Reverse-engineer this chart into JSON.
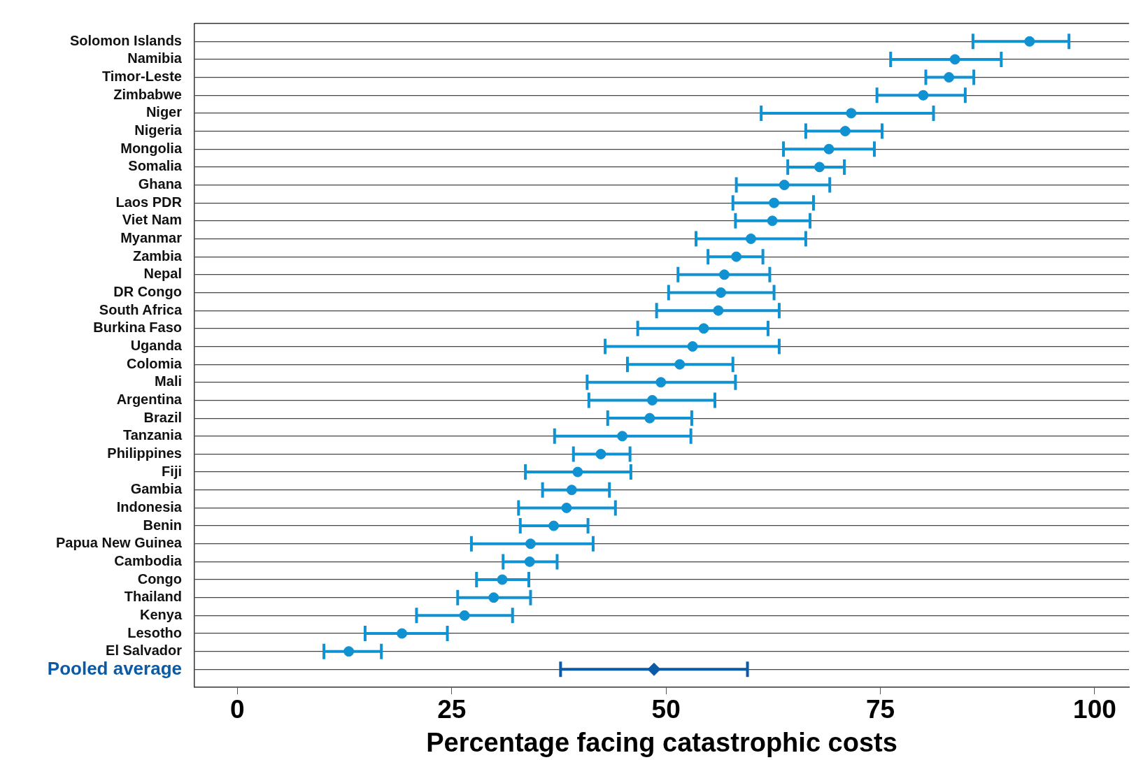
{
  "chart_data": {
    "type": "scatter",
    "orientation": "horizontal",
    "xlabel": "Percentage facing catastrophic costs",
    "categories": [
      "Solomon Islands",
      "Namibia",
      "Timor-Leste",
      "Zimbabwe",
      "Niger",
      "Nigeria",
      "Mongolia",
      "Somalia",
      "Ghana",
      "Laos PDR",
      "Viet Nam",
      "Myanmar",
      "Zambia",
      "Nepal",
      "DR Congo",
      "South Africa",
      "Burkina Faso",
      "Uganda",
      "Colomia",
      "Mali",
      "Argentina",
      "Brazil",
      "Tanzania",
      "Philippines",
      "Fiji",
      "Gambia",
      "Indonesia",
      "Benin",
      "Papua New Guinea",
      "Cambodia",
      "Congo",
      "Thailand",
      "Kenya",
      "Lesotho",
      "El Salvador",
      "Pooled average"
    ],
    "series": [
      {
        "color": "#0f91d2",
        "marker": "circle",
        "values": [
          92.4,
          83.7,
          83.0,
          80.0,
          71.6,
          70.9,
          69.0,
          67.9,
          63.8,
          62.6,
          62.4,
          59.9,
          58.2,
          56.8,
          56.4,
          56.1,
          54.4,
          53.1,
          51.6,
          49.4,
          48.4,
          48.1,
          44.9,
          42.4,
          39.7,
          39.0,
          38.4,
          36.9,
          34.2,
          34.1,
          30.9,
          29.9,
          26.5,
          19.2,
          13.0,
          null
        ],
        "errors": [
          [
            85.8,
            97.0
          ],
          [
            76.2,
            89.1
          ],
          [
            80.3,
            85.9
          ],
          [
            74.6,
            84.9
          ],
          [
            61.1,
            81.2
          ],
          [
            66.3,
            75.2
          ],
          [
            63.7,
            74.3
          ],
          [
            64.2,
            70.8
          ],
          [
            58.2,
            69.1
          ],
          [
            57.8,
            67.2
          ],
          [
            58.1,
            66.8
          ],
          [
            53.5,
            66.3
          ],
          [
            54.9,
            61.3
          ],
          [
            51.4,
            62.1
          ],
          [
            50.3,
            62.6
          ],
          [
            48.9,
            63.2
          ],
          [
            46.7,
            61.9
          ],
          [
            42.9,
            63.2
          ],
          [
            45.5,
            57.8
          ],
          [
            40.8,
            58.1
          ],
          [
            41.0,
            55.7
          ],
          [
            43.2,
            53.0
          ],
          [
            37.0,
            52.9
          ],
          [
            39.2,
            45.8
          ],
          [
            33.6,
            45.9
          ],
          [
            35.6,
            43.4
          ],
          [
            32.8,
            44.1
          ],
          [
            33.0,
            40.9
          ],
          [
            27.3,
            41.5
          ],
          [
            31.0,
            37.3
          ],
          [
            27.9,
            34.0
          ],
          [
            25.7,
            34.2
          ],
          [
            20.9,
            32.1
          ],
          [
            14.9,
            24.5
          ],
          [
            10.1,
            16.8
          ],
          null
        ]
      },
      {
        "color": "#0a5aa5",
        "marker": "diamond",
        "values": [
          null,
          null,
          null,
          null,
          null,
          null,
          null,
          null,
          null,
          null,
          null,
          null,
          null,
          null,
          null,
          null,
          null,
          null,
          null,
          null,
          null,
          null,
          null,
          null,
          null,
          null,
          null,
          null,
          null,
          null,
          null,
          null,
          null,
          null,
          null,
          48.6
        ],
        "errors": [
          null,
          null,
          null,
          null,
          null,
          null,
          null,
          null,
          null,
          null,
          null,
          null,
          null,
          null,
          null,
          null,
          null,
          null,
          null,
          null,
          null,
          null,
          null,
          null,
          null,
          null,
          null,
          null,
          null,
          null,
          null,
          null,
          null,
          null,
          null,
          [
            37.7,
            59.5
          ]
        ]
      }
    ],
    "xlim": [
      -5,
      104
    ],
    "xticks": [
      0,
      25,
      50,
      75,
      100
    ],
    "grid": "y"
  }
}
